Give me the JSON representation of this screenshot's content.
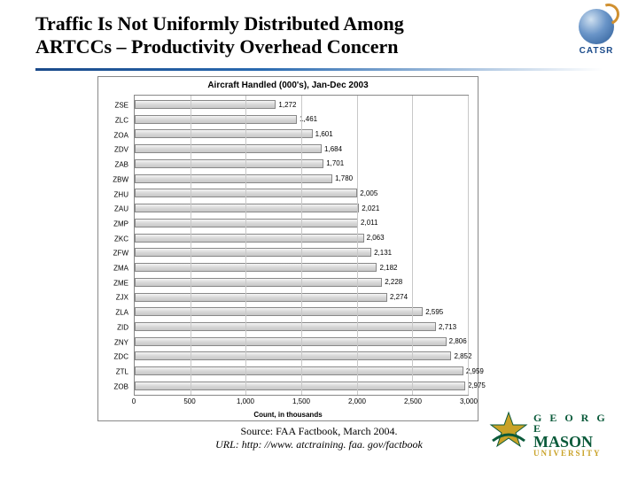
{
  "title": {
    "line1": "Traffic Is Not Uniformly Distributed Among",
    "line2": "ARTCCs – Productivity Overhead Concern"
  },
  "catsr": {
    "label": "CATSR"
  },
  "chart": {
    "type": "bar-horizontal",
    "title": "Aircraft Handled (000's), Jan-Dec 2003",
    "x_axis_title": "Count, in thousands",
    "xlim": [
      0,
      3000
    ],
    "xtick_step": 500,
    "xticks": [
      "0",
      "500",
      "1,000",
      "1,500",
      "2,000",
      "2,500",
      "3,000"
    ],
    "bar_fill": "#d8d8d8",
    "bar_border": "#888888",
    "grid_color": "#c8c8c8",
    "background_color": "#ffffff",
    "label_fontsize": 8,
    "title_fontsize": 10,
    "categories": [
      "ZSE",
      "ZLC",
      "ZOA",
      "ZDV",
      "ZAB",
      "ZBW",
      "ZHU",
      "ZAU",
      "ZMP",
      "ZKC",
      "ZFW",
      "ZMA",
      "ZME",
      "ZJX",
      "ZLA",
      "ZID",
      "ZNY",
      "ZDC",
      "ZTL",
      "ZOB"
    ],
    "values": [
      1272,
      1461,
      1601,
      1684,
      1701,
      1780,
      2005,
      2021,
      2011,
      2063,
      2131,
      2182,
      2228,
      2274,
      2595,
      2713,
      2806,
      2852,
      2959,
      2975
    ],
    "value_labels": [
      "1,272",
      "1,461",
      "1,601",
      "1,684",
      "1,701",
      "1,780",
      "2,005",
      "2,021",
      "2,011",
      "2,063",
      "2,131",
      "2,182",
      "2,228",
      "2,274",
      "2,595",
      "2,713",
      "2,806",
      "2,852",
      "2,959",
      "2,975"
    ]
  },
  "source": {
    "line1": "Source: FAA Factbook, March 2004.",
    "line2": "URL: http: //www. atctraining. faa. gov/factbook"
  },
  "gmu": {
    "george": "G E O R G E",
    "mason": "MASON",
    "univ": "UNIVERSITY",
    "green": "#0a5a3a",
    "gold": "#c9a227"
  }
}
